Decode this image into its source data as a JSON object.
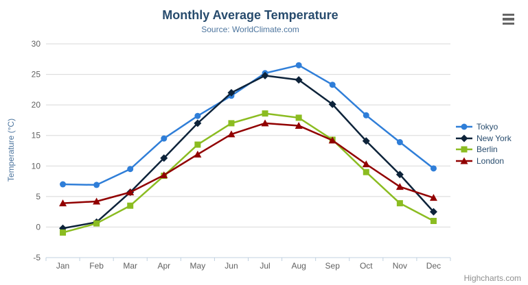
{
  "title": "Monthly Average Temperature",
  "subtitle": "Source: WorldClimate.com",
  "credits": "Highcharts.com",
  "menu_icon": "hamburger-export-menu",
  "colors": {
    "title": "#274b6d",
    "subtitle": "#4d759e",
    "axis_label": "#606060",
    "axis_title": "#4d759e",
    "grid_line": "#d8d8d8",
    "axis_line": "#c0d0e0",
    "tick": "#c0d0e0",
    "legend_text": "#274b6d",
    "credits": "#909090",
    "menu_icon": "#666666",
    "background": "#ffffff"
  },
  "chart_data": {
    "type": "line",
    "title": "Monthly Average Temperature",
    "subtitle": "Source: WorldClimate.com",
    "categories": [
      "Jan",
      "Feb",
      "Mar",
      "Apr",
      "May",
      "Jun",
      "Jul",
      "Aug",
      "Sep",
      "Oct",
      "Nov",
      "Dec"
    ],
    "series": [
      {
        "name": "Tokyo",
        "color": "#2f7ed8",
        "marker": "circle",
        "values": [
          7.0,
          6.9,
          9.5,
          14.5,
          18.2,
          21.5,
          25.2,
          26.5,
          23.3,
          18.3,
          13.9,
          9.6
        ]
      },
      {
        "name": "New York",
        "color": "#0d233a",
        "marker": "diamond",
        "values": [
          -0.2,
          0.8,
          5.7,
          11.3,
          17.0,
          22.0,
          24.8,
          24.1,
          20.1,
          14.1,
          8.6,
          2.5
        ]
      },
      {
        "name": "Berlin",
        "color": "#8bbc21",
        "marker": "square",
        "values": [
          -0.9,
          0.6,
          3.5,
          8.4,
          13.5,
          17.0,
          18.6,
          17.9,
          14.3,
          9.0,
          3.9,
          1.0
        ]
      },
      {
        "name": "London",
        "color": "#910000",
        "marker": "triangle",
        "values": [
          3.9,
          4.2,
          5.7,
          8.5,
          11.9,
          15.2,
          17.0,
          16.6,
          14.2,
          10.3,
          6.6,
          4.8
        ]
      }
    ],
    "xlabel": "",
    "ylabel": "Temperature (°C)",
    "ylim": [
      -5,
      30
    ],
    "yticks": [
      -5,
      0,
      5,
      10,
      15,
      20,
      25,
      30
    ],
    "grid": true,
    "legend_position": "right"
  }
}
